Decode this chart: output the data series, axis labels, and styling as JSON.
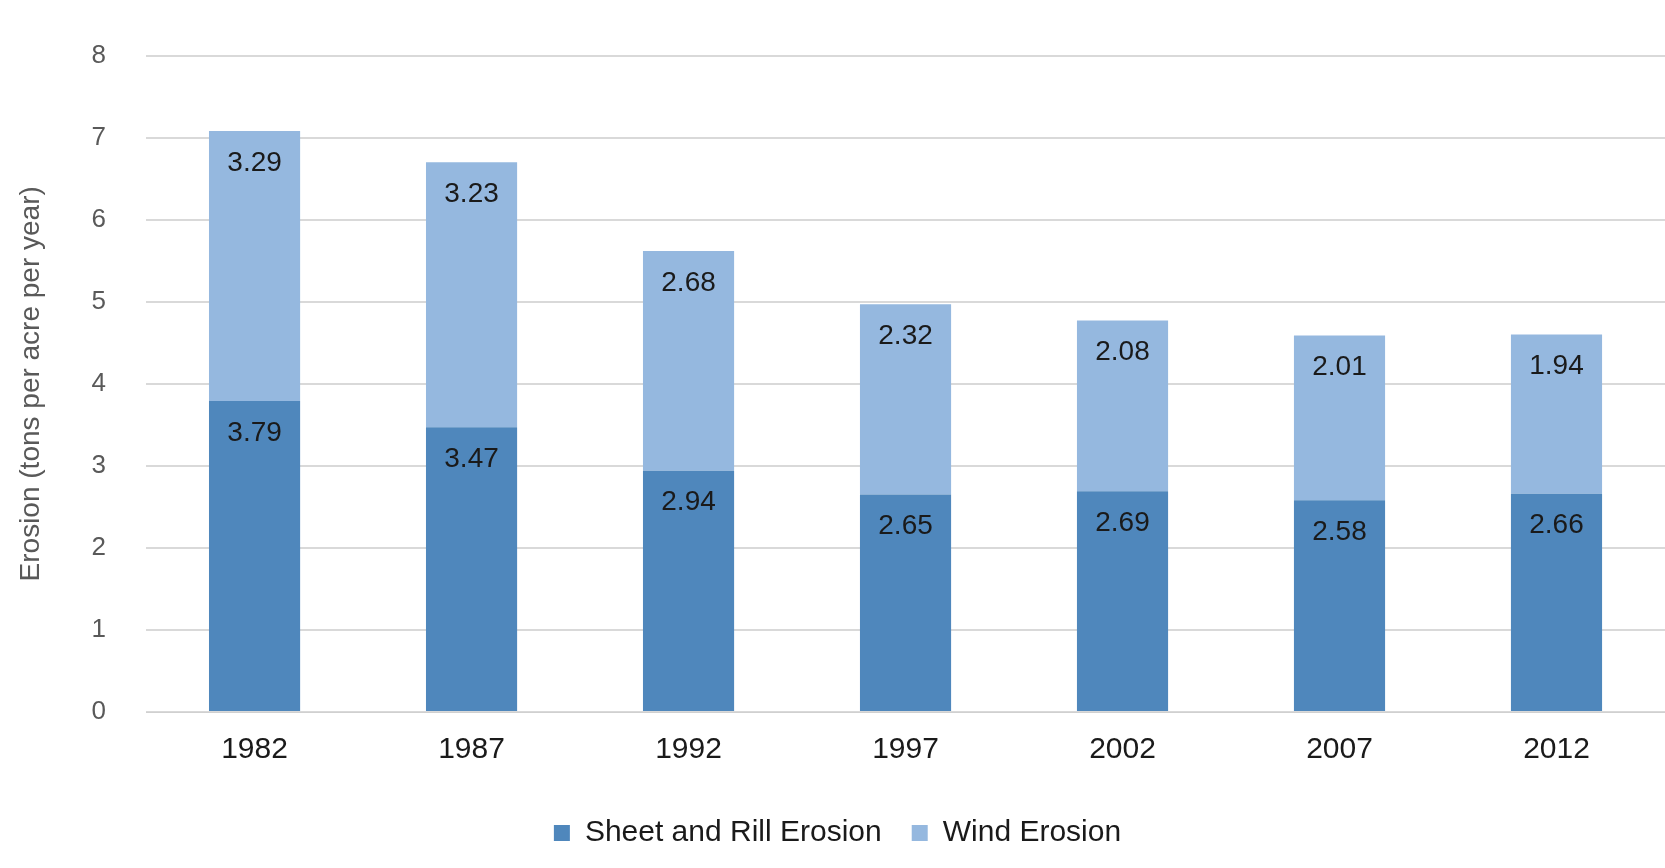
{
  "chart_data": {
    "type": "bar",
    "ylabel": "Erosion (tons per acre per year)",
    "categories": [
      "1982",
      "1987",
      "1992",
      "1997",
      "2002",
      "2007",
      "2012"
    ],
    "stacked": true,
    "data_labels": true,
    "grid": "y",
    "legend": "bottom",
    "ylim": [
      0,
      8
    ],
    "yticks": [
      0,
      1,
      2,
      3,
      4,
      5,
      6,
      7,
      8
    ],
    "series": [
      {
        "name": "Sheet and Rill Erosion",
        "color": "#4f87bc",
        "values": [
          3.79,
          3.47,
          2.94,
          2.65,
          2.69,
          2.58,
          2.66
        ]
      },
      {
        "name": "Wind Erosion",
        "color": "#95b8df",
        "values": [
          3.29,
          3.23,
          2.68,
          2.32,
          2.08,
          2.01,
          1.94
        ]
      }
    ]
  }
}
